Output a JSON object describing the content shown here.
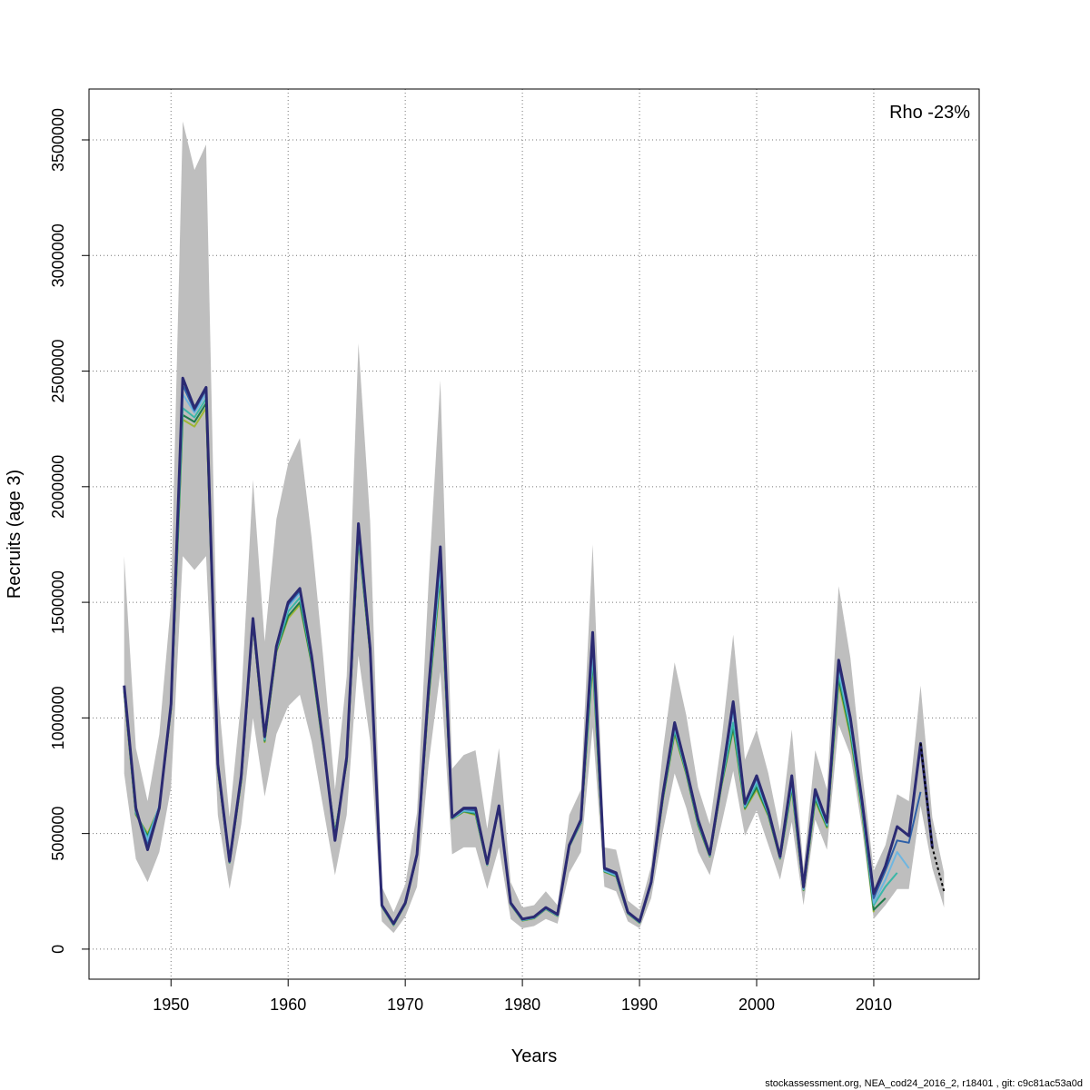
{
  "chart_data": {
    "type": "line",
    "xlabel": "Years",
    "ylabel": "Recruits (age 3)",
    "annotation": "Rho -23%",
    "footer": "stockassessment.org, NEA_cod24_2016_2, r18401 , git: c9c81ac53a0d",
    "xlim": [
      1943,
      2019
    ],
    "ylim": [
      -130000,
      3720000
    ],
    "x_ticks": [
      1950,
      1960,
      1970,
      1980,
      1990,
      2000,
      2010
    ],
    "y_ticks": [
      0,
      500000,
      1000000,
      1500000,
      2000000,
      2500000,
      3000000,
      3500000
    ],
    "grid": true,
    "colors": {
      "band": "#bebebe",
      "main": "#2b2a72",
      "peels": [
        "#2d5fa8",
        "#6fb6e0",
        "#3ab7a8",
        "#1f7a4a",
        "#9fb636"
      ],
      "dashed": "#000000"
    },
    "confidence_band": {
      "x": [
        1946,
        1947,
        1948,
        1949,
        1950,
        1951,
        1952,
        1953,
        1954,
        1955,
        1956,
        1957,
        1958,
        1959,
        1960,
        1961,
        1962,
        1963,
        1964,
        1965,
        1966,
        1967,
        1968,
        1969,
        1970,
        1971,
        1972,
        1973,
        1974,
        1975,
        1976,
        1977,
        1978,
        1979,
        1980,
        1981,
        1982,
        1983,
        1984,
        1985,
        1986,
        1987,
        1988,
        1989,
        1990,
        1991,
        1992,
        1993,
        1994,
        1995,
        1996,
        1997,
        1998,
        1999,
        2000,
        2001,
        2002,
        2003,
        2004,
        2005,
        2006,
        2007,
        2008,
        2009,
        2010,
        2011,
        2012,
        2013,
        2014,
        2015,
        2016
      ],
      "lower": [
        760000,
        390000,
        290000,
        420000,
        700000,
        1700000,
        1640000,
        1700000,
        580000,
        260000,
        540000,
        1000000,
        660000,
        930000,
        1050000,
        1100000,
        900000,
        610000,
        320000,
        580000,
        1270000,
        900000,
        120000,
        70000,
        140000,
        270000,
        800000,
        1200000,
        410000,
        440000,
        440000,
        260000,
        440000,
        130000,
        90000,
        100000,
        130000,
        110000,
        330000,
        420000,
        960000,
        270000,
        250000,
        120000,
        90000,
        220000,
        510000,
        760000,
        610000,
        420000,
        320000,
        540000,
        770000,
        490000,
        600000,
        450000,
        300000,
        550000,
        190000,
        560000,
        430000,
        970000,
        840000,
        520000,
        130000,
        190000,
        260000,
        260000,
        620000,
        350000,
        180000
      ],
      "upper": [
        1700000,
        870000,
        640000,
        930000,
        1500000,
        3580000,
        3370000,
        3480000,
        1120000,
        570000,
        1080000,
        2030000,
        1330000,
        1860000,
        2100000,
        2210000,
        1780000,
        1260000,
        690000,
        1180000,
        2620000,
        1850000,
        270000,
        160000,
        280000,
        590000,
        1590000,
        2460000,
        780000,
        840000,
        860000,
        520000,
        870000,
        290000,
        180000,
        190000,
        250000,
        190000,
        580000,
        690000,
        1750000,
        440000,
        430000,
        210000,
        170000,
        360000,
        860000,
        1240000,
        1010000,
        700000,
        540000,
        900000,
        1360000,
        820000,
        950000,
        760000,
        510000,
        950000,
        350000,
        860000,
        690000,
        1570000,
        1260000,
        770000,
        340000,
        450000,
        670000,
        640000,
        1140000,
        570000,
        330000
      ]
    },
    "series": [
      {
        "x": [
          1946,
          1947,
          1948,
          1949,
          1950,
          1951,
          1952,
          1953,
          1954,
          1955,
          1956,
          1957,
          1958,
          1959,
          1960,
          1961,
          1962,
          1963,
          1964,
          1965,
          1966,
          1967,
          1968,
          1969,
          1970,
          1971,
          1972,
          1973,
          1974,
          1975,
          1976,
          1977,
          1978,
          1979,
          1980,
          1981,
          1982,
          1983,
          1984,
          1985,
          1986,
          1987,
          1988,
          1989,
          1990,
          1991,
          1992,
          1993,
          1994,
          1995,
          1996,
          1997,
          1998,
          1999,
          2000,
          2001,
          2002,
          2003,
          2004,
          2005,
          2006,
          2007,
          2008,
          2009,
          2010,
          2011,
          2012,
          2013,
          2014,
          2015
        ],
        "values": [
          1140000,
          610000,
          430000,
          610000,
          1060000,
          2470000,
          2340000,
          2430000,
          800000,
          380000,
          750000,
          1430000,
          920000,
          1310000,
          1500000,
          1560000,
          1270000,
          890000,
          470000,
          830000,
          1840000,
          1300000,
          190000,
          110000,
          200000,
          410000,
          1130000,
          1740000,
          570000,
          610000,
          610000,
          370000,
          620000,
          200000,
          130000,
          140000,
          180000,
          150000,
          450000,
          560000,
          1370000,
          350000,
          330000,
          160000,
          120000,
          290000,
          670000,
          980000,
          780000,
          560000,
          410000,
          730000,
          1070000,
          630000,
          750000,
          600000,
          400000,
          750000,
          270000,
          690000,
          550000,
          1250000,
          1000000,
          640000,
          240000,
          360000,
          530000,
          490000,
          890000,
          440000
        ]
      },
      {
        "x": [
          1946,
          1947,
          1948,
          1949,
          1950,
          1951,
          1952,
          1953,
          1954,
          1955,
          1956,
          1957,
          1958,
          1959,
          1960,
          1961,
          1962,
          1963,
          1964,
          1965,
          1966,
          1967,
          1968,
          1969,
          1970,
          1971,
          1972,
          1973,
          1974,
          1975,
          1976,
          1977,
          1978,
          1979,
          1980,
          1981,
          1982,
          1983,
          1984,
          1985,
          1986,
          1987,
          1988,
          1989,
          1990,
          1991,
          1992,
          1993,
          1994,
          1995,
          1996,
          1997,
          1998,
          1999,
          2000,
          2001,
          2002,
          2003,
          2004,
          2005,
          2006,
          2007,
          2008,
          2009,
          2010,
          2011,
          2012,
          2013,
          2014
        ],
        "values": [
          1130000,
          600000,
          450000,
          615000,
          1055000,
          2440000,
          2330000,
          2420000,
          795000,
          378000,
          745000,
          1425000,
          915000,
          1305000,
          1490000,
          1550000,
          1265000,
          885000,
          480000,
          825000,
          1820000,
          1295000,
          188000,
          108000,
          198000,
          408000,
          1120000,
          1700000,
          568000,
          605000,
          600000,
          368000,
          618000,
          198000,
          128000,
          138000,
          178000,
          148000,
          448000,
          555000,
          1340000,
          345000,
          325000,
          158000,
          118000,
          288000,
          665000,
          970000,
          775000,
          555000,
          408000,
          725000,
          1050000,
          625000,
          740000,
          595000,
          398000,
          740000,
          265000,
          680000,
          545000,
          1230000,
          990000,
          630000,
          220000,
          340000,
          470000,
          460000,
          680000
        ]
      },
      {
        "x": [
          1946,
          1947,
          1948,
          1949,
          1950,
          1951,
          1952,
          1953,
          1954,
          1955,
          1956,
          1957,
          1958,
          1959,
          1960,
          1961,
          1962,
          1963,
          1964,
          1965,
          1966,
          1967,
          1968,
          1969,
          1970,
          1971,
          1972,
          1973,
          1974,
          1975,
          1976,
          1977,
          1978,
          1979,
          1980,
          1981,
          1982,
          1983,
          1984,
          1985,
          1986,
          1987,
          1988,
          1989,
          1990,
          1991,
          1992,
          1993,
          1994,
          1995,
          1996,
          1997,
          1998,
          1999,
          2000,
          2001,
          2002,
          2003,
          2004,
          2005,
          2006,
          2007,
          2008,
          2009,
          2010,
          2011,
          2012,
          2013
        ],
        "values": [
          1125000,
          595000,
          470000,
          620000,
          1050000,
          2400000,
          2320000,
          2400000,
          790000,
          376000,
          740000,
          1420000,
          910000,
          1300000,
          1480000,
          1540000,
          1260000,
          880000,
          490000,
          820000,
          1800000,
          1290000,
          186000,
          106000,
          196000,
          406000,
          1110000,
          1660000,
          566000,
          600000,
          595000,
          366000,
          616000,
          196000,
          126000,
          136000,
          176000,
          146000,
          446000,
          550000,
          1300000,
          340000,
          320000,
          156000,
          116000,
          286000,
          660000,
          960000,
          770000,
          550000,
          406000,
          720000,
          1030000,
          620000,
          730000,
          590000,
          396000,
          720000,
          260000,
          670000,
          540000,
          1210000,
          970000,
          620000,
          200000,
          300000,
          420000,
          350000
        ]
      },
      {
        "x": [
          1946,
          1947,
          1948,
          1949,
          1950,
          1951,
          1952,
          1953,
          1954,
          1955,
          1956,
          1957,
          1958,
          1959,
          1960,
          1961,
          1962,
          1963,
          1964,
          1965,
          1966,
          1967,
          1968,
          1969,
          1970,
          1971,
          1972,
          1973,
          1974,
          1975,
          1976,
          1977,
          1978,
          1979,
          1980,
          1981,
          1982,
          1983,
          1984,
          1985,
          1986,
          1987,
          1988,
          1989,
          1990,
          1991,
          1992,
          1993,
          1994,
          1995,
          1996,
          1997,
          1998,
          1999,
          2000,
          2001,
          2002,
          2003,
          2004,
          2005,
          2006,
          2007,
          2008,
          2009,
          2010,
          2011,
          2012
        ],
        "values": [
          1120000,
          590000,
          480000,
          618000,
          1045000,
          2340000,
          2300000,
          2380000,
          785000,
          375000,
          735000,
          1415000,
          905000,
          1295000,
          1460000,
          1520000,
          1250000,
          875000,
          495000,
          815000,
          1790000,
          1285000,
          185000,
          105000,
          195000,
          405000,
          1100000,
          1640000,
          565000,
          598000,
          590000,
          365000,
          615000,
          195000,
          125000,
          135000,
          175000,
          145000,
          445000,
          548000,
          1270000,
          338000,
          318000,
          155000,
          115000,
          285000,
          655000,
          950000,
          765000,
          545000,
          404000,
          715000,
          980000,
          615000,
          715000,
          585000,
          394000,
          710000,
          258000,
          660000,
          535000,
          1190000,
          950000,
          610000,
          190000,
          270000,
          330000
        ]
      },
      {
        "x": [
          1946,
          1947,
          1948,
          1949,
          1950,
          1951,
          1952,
          1953,
          1954,
          1955,
          1956,
          1957,
          1958,
          1959,
          1960,
          1961,
          1962,
          1963,
          1964,
          1965,
          1966,
          1967,
          1968,
          1969,
          1970,
          1971,
          1972,
          1973,
          1974,
          1975,
          1976,
          1977,
          1978,
          1979,
          1980,
          1981,
          1982,
          1983,
          1984,
          1985,
          1986,
          1987,
          1988,
          1989,
          1990,
          1991,
          1992,
          1993,
          1994,
          1995,
          1996,
          1997,
          1998,
          1999,
          2000,
          2001,
          2002,
          2003,
          2004,
          2005,
          2006,
          2007,
          2008,
          2009,
          2010,
          2011
        ],
        "values": [
          1115000,
          585000,
          490000,
          615000,
          1040000,
          2310000,
          2280000,
          2360000,
          780000,
          374000,
          730000,
          1410000,
          900000,
          1290000,
          1440000,
          1500000,
          1240000,
          870000,
          500000,
          810000,
          1780000,
          1280000,
          184000,
          104000,
          194000,
          404000,
          1090000,
          1620000,
          564000,
          596000,
          585000,
          364000,
          614000,
          194000,
          124000,
          134000,
          174000,
          144000,
          444000,
          546000,
          1250000,
          336000,
          316000,
          154000,
          114000,
          284000,
          650000,
          940000,
          760000,
          540000,
          402000,
          710000,
          960000,
          610000,
          700000,
          580000,
          392000,
          700000,
          256000,
          650000,
          530000,
          1170000,
          935000,
          600000,
          170000,
          220000
        ]
      },
      {
        "x": [
          1946,
          1947,
          1948,
          1949,
          1950,
          1951,
          1952,
          1953,
          1954,
          1955,
          1956,
          1957,
          1958,
          1959,
          1960,
          1961,
          1962,
          1963,
          1964,
          1965,
          1966,
          1967,
          1968,
          1969,
          1970,
          1971,
          1972,
          1973,
          1974,
          1975,
          1976,
          1977,
          1978,
          1979,
          1980,
          1981,
          1982,
          1983,
          1984,
          1985,
          1986,
          1987,
          1988,
          1989,
          1990,
          1991,
          1992,
          1993,
          1994,
          1995,
          1996,
          1997,
          1998,
          1999,
          2000,
          2001,
          2002,
          2003,
          2004,
          2005,
          2006,
          2007,
          2008,
          2009,
          2010
        ],
        "values": [
          1110000,
          580000,
          500000,
          612000,
          1035000,
          2290000,
          2260000,
          2340000,
          775000,
          373000,
          725000,
          1405000,
          895000,
          1285000,
          1430000,
          1490000,
          1235000,
          865000,
          505000,
          805000,
          1770000,
          1275000,
          183000,
          103000,
          193000,
          403000,
          1080000,
          1600000,
          563000,
          594000,
          580000,
          363000,
          613000,
          193000,
          123000,
          133000,
          173000,
          143000,
          443000,
          544000,
          1230000,
          334000,
          314000,
          153000,
          113000,
          283000,
          645000,
          930000,
          755000,
          535000,
          400000,
          705000,
          950000,
          605000,
          690000,
          575000,
          390000,
          690000,
          254000,
          640000,
          525000,
          1150000,
          920000,
          590000,
          160000
        ]
      },
      {
        "x": [
          2014,
          2015,
          2016
        ],
        "values": [
          890000,
          440000,
          250000
        ]
      }
    ]
  }
}
